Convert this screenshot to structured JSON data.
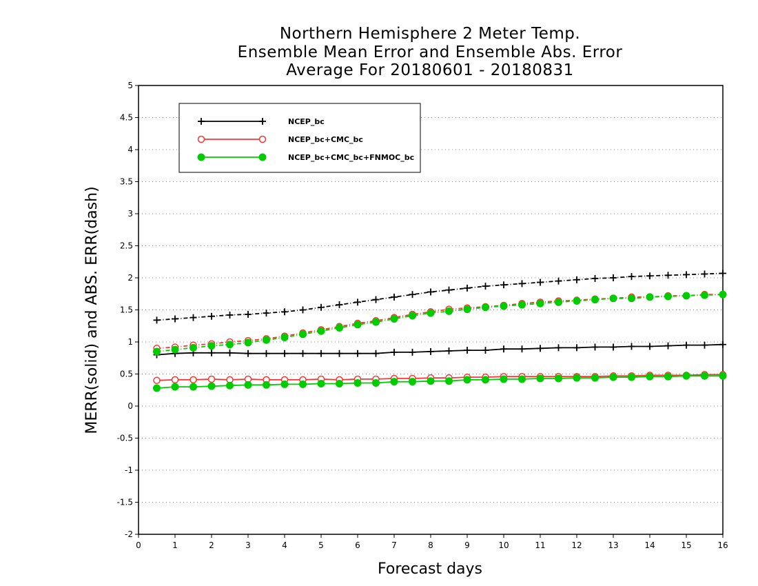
{
  "chart_data": {
    "type": "line",
    "title_lines": [
      "Northern Hemisphere 2 Meter Temp.",
      "Ensemble Mean Error and Ensemble Abs. Error",
      "Average For 20180601 - 20180831"
    ],
    "xlabel": "Forecast days",
    "ylabel": "MERR(solid) and ABS. ERR(dash)",
    "xlim": [
      0,
      16
    ],
    "ylim": [
      -2,
      5
    ],
    "x_ticks": [
      "0",
      "1",
      "2",
      "3",
      "4",
      "5",
      "6",
      "7",
      "8",
      "9",
      "10",
      "11",
      "12",
      "13",
      "14",
      "15",
      "16"
    ],
    "y_ticks": [
      "5",
      "4.5",
      "4",
      "3.5",
      "3",
      "2.5",
      "2",
      "1.5",
      "1",
      "0.5",
      "0",
      "-0.5",
      "-1",
      "-1.5",
      "-2"
    ],
    "grid": "horizontal dotted",
    "legend_position": "top-left",
    "x": [
      0.5,
      1,
      1.5,
      2,
      2.5,
      3,
      3.5,
      4,
      4.5,
      5,
      5.5,
      6,
      6.5,
      7,
      7.5,
      8,
      8.5,
      9,
      9.5,
      10,
      10.5,
      11,
      11.5,
      12,
      12.5,
      13,
      13.5,
      14,
      14.5,
      15,
      15.5,
      16
    ],
    "series": [
      {
        "name": "NCEP_bc",
        "color": "#000000",
        "marker": "plus",
        "merr": [
          0.8,
          0.82,
          0.83,
          0.83,
          0.83,
          0.82,
          0.82,
          0.82,
          0.82,
          0.82,
          0.82,
          0.82,
          0.82,
          0.84,
          0.84,
          0.85,
          0.86,
          0.87,
          0.87,
          0.89,
          0.89,
          0.9,
          0.91,
          0.91,
          0.92,
          0.92,
          0.93,
          0.93,
          0.94,
          0.95,
          0.95,
          0.96
        ],
        "abs_err": [
          1.34,
          1.36,
          1.38,
          1.4,
          1.42,
          1.43,
          1.45,
          1.47,
          1.5,
          1.54,
          1.58,
          1.62,
          1.66,
          1.7,
          1.74,
          1.78,
          1.81,
          1.84,
          1.87,
          1.89,
          1.91,
          1.93,
          1.95,
          1.97,
          1.99,
          2.0,
          2.02,
          2.03,
          2.04,
          2.05,
          2.06,
          2.07
        ]
      },
      {
        "name": "NCEP_bc+CMC_bc",
        "color": "#ff3333",
        "marker": "open-circle",
        "merr": [
          0.4,
          0.41,
          0.41,
          0.42,
          0.41,
          0.42,
          0.41,
          0.41,
          0.41,
          0.42,
          0.41,
          0.42,
          0.42,
          0.43,
          0.43,
          0.44,
          0.44,
          0.45,
          0.45,
          0.46,
          0.46,
          0.46,
          0.46,
          0.46,
          0.46,
          0.47,
          0.47,
          0.48,
          0.48,
          0.48,
          0.49,
          0.49
        ],
        "abs_err": [
          0.9,
          0.92,
          0.95,
          0.97,
          1.0,
          1.02,
          1.05,
          1.09,
          1.14,
          1.19,
          1.24,
          1.29,
          1.33,
          1.38,
          1.43,
          1.47,
          1.51,
          1.53,
          1.55,
          1.57,
          1.6,
          1.62,
          1.64,
          1.65,
          1.67,
          1.68,
          1.7,
          1.7,
          1.72,
          1.72,
          1.74,
          1.74
        ]
      },
      {
        "name": "NCEP_bc+CMC_bc+FNMOC_bc",
        "color": "#00cc00",
        "marker": "filled-circle",
        "merr": [
          0.28,
          0.3,
          0.3,
          0.31,
          0.32,
          0.33,
          0.33,
          0.34,
          0.34,
          0.35,
          0.35,
          0.36,
          0.36,
          0.38,
          0.38,
          0.39,
          0.39,
          0.41,
          0.41,
          0.42,
          0.42,
          0.43,
          0.43,
          0.44,
          0.44,
          0.45,
          0.45,
          0.46,
          0.46,
          0.47,
          0.47,
          0.47
        ],
        "abs_err": [
          0.85,
          0.88,
          0.91,
          0.94,
          0.96,
          0.99,
          1.03,
          1.07,
          1.12,
          1.17,
          1.22,
          1.27,
          1.31,
          1.36,
          1.41,
          1.45,
          1.48,
          1.51,
          1.54,
          1.56,
          1.58,
          1.6,
          1.62,
          1.64,
          1.66,
          1.68,
          1.68,
          1.7,
          1.71,
          1.72,
          1.73,
          1.74
        ]
      }
    ]
  }
}
